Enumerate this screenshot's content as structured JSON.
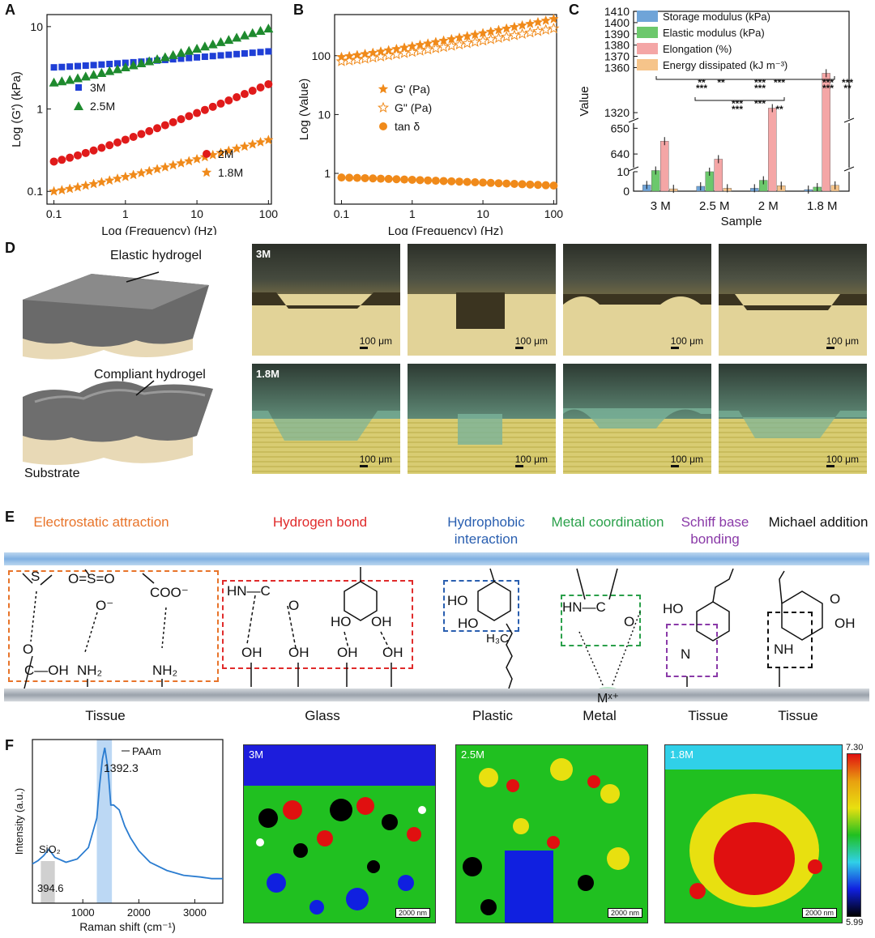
{
  "panels": {
    "A": "A",
    "B": "B",
    "C": "C",
    "D": "D",
    "E": "E",
    "F": "F"
  },
  "panel_d": {
    "elastic_label": "Elastic hydrogel",
    "compliant_label": "Compliant hydrogel",
    "substrate_label": "Substrate",
    "row1_tag": "3M",
    "row2_tag": "1.8M",
    "scale": "100 μm"
  },
  "panel_e": {
    "categories": [
      {
        "title": "Electrostatic attraction",
        "color": "#e8742a",
        "substrate": "Tissue"
      },
      {
        "title": "Hydrogen bond",
        "color": "#e02b2b",
        "substrate": "Glass"
      },
      {
        "title": "Hydrophobic interaction",
        "color": "#2a5fb0",
        "substrate": "Plastic"
      },
      {
        "title": "Metal coordination",
        "color": "#2aa04a",
        "substrate": "Metal"
      },
      {
        "title": "Schiff base bonding",
        "color": "#8a3aa8",
        "substrate": "Tissue"
      },
      {
        "title": "Michael addition",
        "color": "#111111",
        "substrate": "Tissue"
      }
    ],
    "chem": {
      "s_plus": "S",
      "so3": "O=S=O",
      "o_minus": "O⁻",
      "coo": "COO⁻",
      "nh2": "NH₂",
      "cooh": "C—OH",
      "o": "O",
      "hn": "HN—C",
      "oh": "OH",
      "ho": "HO",
      "h3c": "H₃C",
      "metal": "Mˣ⁺",
      "n": "N",
      "nh": "NH"
    }
  },
  "panel_f": {
    "map_tags": [
      "3M",
      "2.5M",
      "1.8M"
    ],
    "map_scale": "2000 nm",
    "colorbar_max": "7.30",
    "colorbar_min": "5.99"
  },
  "chart_data": [
    {
      "id": "A",
      "type": "scatter",
      "xlabel": "Log (Frequency) (Hz)",
      "ylabel": "Log (G') (kPa)",
      "xscale": "log",
      "yscale": "log",
      "xlim": [
        0.08,
        110
      ],
      "ylim": [
        0.07,
        14
      ],
      "xticks": [
        "0.1",
        "1",
        "10",
        "100"
      ],
      "yticks": [
        "0.1",
        "1",
        "10"
      ],
      "series": [
        {
          "name": "3M",
          "color": "#1f3fd6",
          "marker": "square",
          "x0": 0.1,
          "x1": 100,
          "y0": 3.2,
          "y1": 5.0
        },
        {
          "name": "2.5M",
          "color": "#1e8a2e",
          "marker": "triangle",
          "x0": 0.1,
          "x1": 100,
          "y0": 2.1,
          "y1": 9.5
        },
        {
          "name": "2M",
          "color": "#e01a1a",
          "marker": "circle",
          "x0": 0.1,
          "x1": 100,
          "y0": 0.23,
          "y1": 2.0
        },
        {
          "name": "1.8M",
          "color": "#f08a1a",
          "marker": "star",
          "x0": 0.1,
          "x1": 100,
          "y0": 0.1,
          "y1": 0.42
        }
      ],
      "legend": "inside"
    },
    {
      "id": "B",
      "type": "scatter",
      "xlabel": "Log (Frequency) (Hz)",
      "ylabel": "Log (Value)",
      "xscale": "log",
      "yscale": "log",
      "xlim": [
        0.08,
        110
      ],
      "ylim": [
        0.3,
        500
      ],
      "xticks": [
        "0.1",
        "1",
        "10",
        "100"
      ],
      "yticks": [
        "1",
        "10",
        "100"
      ],
      "series": [
        {
          "name": "G' (Pa)",
          "color": "#f08a1a",
          "marker": "star",
          "x0": 0.1,
          "x1": 100,
          "y0": 95,
          "y1": 420
        },
        {
          "name": "G\" (Pa)",
          "color": "#f08a1a",
          "marker": "star-open",
          "x0": 0.1,
          "x1": 100,
          "y0": 80,
          "y1": 290
        },
        {
          "name": "tan δ",
          "color": "#f08a1a",
          "marker": "circle",
          "x0": 0.1,
          "x1": 100,
          "y0": 0.85,
          "y1": 0.62
        }
      ]
    },
    {
      "id": "C",
      "type": "bar",
      "xlabel": "Sample",
      "ylabel": "Value",
      "categories": [
        "3 M",
        "2.5 M",
        "2 M",
        "1.8 M"
      ],
      "series": [
        {
          "name": "Storage modulus (kPa)",
          "color": "#6fa4d8",
          "values": [
            3.2,
            2.5,
            1.5,
            0.8
          ]
        },
        {
          "name": "Elastic modulus (kPa)",
          "color": "#6cc86c",
          "values": [
            17.5,
            10.2,
            5.6,
            2.1
          ]
        },
        {
          "name": "Elongation (%)",
          "color": "#f4a6a6",
          "values": [
            645,
            638,
            1324,
            1355
          ]
        },
        {
          "name": "Energy dissipated (kJ m⁻³)",
          "color": "#f6c48a",
          "values": [
            1.2,
            1.5,
            2.8,
            3.0
          ]
        }
      ],
      "yticks_low": [
        "0",
        "10"
      ],
      "yticks_mid": [
        "640",
        "650"
      ],
      "yticks_high": [
        "1320",
        "1360",
        "1370",
        "1380",
        "1390",
        "1400",
        "1410"
      ],
      "sig": {
        "a": "**",
        "b": "***",
        "c": "**",
        "d": "***",
        "e": "***",
        "f": "***",
        "g": "***",
        "h": "***",
        "i": "***",
        "j": "**",
        "k": "***",
        "l": "**",
        "m": "***",
        "n": "***"
      }
    },
    {
      "id": "F",
      "type": "line",
      "xlabel": "Raman shift (cm⁻¹)",
      "ylabel": "Intensity (a.u.)",
      "xlim": [
        100,
        3500
      ],
      "xticks": [
        "1000",
        "2000",
        "3000"
      ],
      "x": [
        100,
        200,
        300,
        394.6,
        500,
        700,
        900,
        1100,
        1250,
        1300,
        1350,
        1392.3,
        1450,
        1500,
        1550,
        1650,
        1750,
        1850,
        2000,
        2200,
        2500,
        2800,
        3100,
        3300,
        3500
      ],
      "values": [
        0.24,
        0.26,
        0.29,
        0.33,
        0.28,
        0.25,
        0.27,
        0.34,
        0.52,
        0.72,
        0.88,
        0.95,
        0.82,
        0.6,
        0.6,
        0.57,
        0.47,
        0.4,
        0.32,
        0.25,
        0.2,
        0.17,
        0.16,
        0.15,
        0.15
      ],
      "annotations": [
        {
          "label": "SiO₂",
          "value": "394.6"
        },
        {
          "label": "PAAm",
          "value": "1392.3"
        }
      ]
    }
  ]
}
